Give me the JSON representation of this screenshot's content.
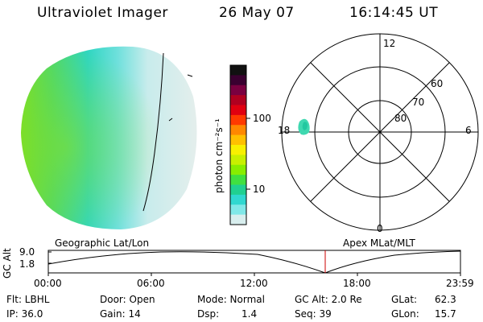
{
  "header": {
    "title": "Ultraviolet Imager",
    "date": "26 May 07",
    "time": "16:14:45 UT"
  },
  "colorbar": {
    "unit_label": "photon cm⁻²s⁻¹",
    "ticks": [
      "100",
      "10"
    ],
    "colors": [
      "#111111",
      "#3a0030",
      "#7a0040",
      "#b00020",
      "#e00010",
      "#ff3a00",
      "#ff8800",
      "#ffc000",
      "#f8f000",
      "#c8f000",
      "#88ee00",
      "#40e040",
      "#20d090",
      "#30d8d0",
      "#80e8e8",
      "#d8eeee"
    ]
  },
  "polar_plot": {
    "mlt_labels": {
      "top": "12",
      "left": "18",
      "right": "6",
      "bottom": "0"
    },
    "lat_labels": [
      "60",
      "70",
      "80"
    ]
  },
  "labels": {
    "geographic": "Geographic Lat/Lon",
    "apex": "Apex MLat/MLT"
  },
  "altitude_plot": {
    "ylabel": "GC Alt",
    "yticks": [
      "9.0",
      "1.8"
    ],
    "xticks": [
      "00:00",
      "06:00",
      "12:00",
      "18:00",
      "23:59"
    ],
    "current_marker_time": "16:14:45"
  },
  "info": {
    "flt": "Flt: LBHL",
    "ip": "IP: 36.0",
    "door": "Door: Open",
    "gain": "Gain: 14",
    "mode": "Mode: Normal",
    "dsp_label": "Dsp:",
    "dsp_value": "1.4",
    "gc_alt": "GC Alt: 2.0 Re",
    "seq": "Seq: 39",
    "glat_label": "GLat:",
    "glat_value": "62.3",
    "glon_label": "GLon:",
    "glon_value": "15.7"
  }
}
